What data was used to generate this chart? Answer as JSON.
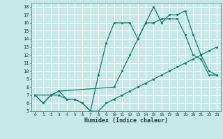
{
  "xlabel": "Humidex (Indice chaleur)",
  "bg_color": "#c8e8e8",
  "grid_color": "#ffffff",
  "line_color": "#1a7a6e",
  "xlim": [
    -0.5,
    23.5
  ],
  "ylim": [
    5,
    18.5
  ],
  "xticks": [
    0,
    1,
    2,
    3,
    4,
    5,
    6,
    7,
    8,
    9,
    10,
    11,
    12,
    13,
    14,
    15,
    16,
    17,
    18,
    19,
    20,
    21,
    22,
    23
  ],
  "yticks": [
    5,
    6,
    7,
    8,
    9,
    10,
    11,
    12,
    13,
    14,
    15,
    16,
    17,
    18
  ],
  "series": [
    {
      "x": [
        0,
        1,
        2,
        3,
        4,
        5,
        6,
        7,
        8,
        9,
        10,
        11,
        12,
        13,
        14,
        15,
        16,
        17,
        18,
        19,
        20,
        21,
        22,
        23
      ],
      "y": [
        7.0,
        6.0,
        7.0,
        7.0,
        6.5,
        6.5,
        6.0,
        5.0,
        5.0,
        6.0,
        6.5,
        7.0,
        7.5,
        8.0,
        8.5,
        9.0,
        9.5,
        10.0,
        10.5,
        11.0,
        11.5,
        12.0,
        12.5,
        13.0
      ]
    },
    {
      "x": [
        0,
        1,
        2,
        3,
        4,
        5,
        6,
        7,
        8,
        9,
        10,
        11,
        12,
        13,
        14,
        15,
        16,
        17,
        18,
        19,
        20,
        21,
        22,
        23
      ],
      "y": [
        7.0,
        6.0,
        7.0,
        7.5,
        6.5,
        6.5,
        6.0,
        5.0,
        9.5,
        13.5,
        16.0,
        16.0,
        16.0,
        14.0,
        16.0,
        16.0,
        16.5,
        16.5,
        16.5,
        14.5,
        12.0,
        11.5,
        9.5,
        9.5
      ]
    },
    {
      "x": [
        0,
        2,
        3,
        10,
        11,
        12,
        13,
        14,
        15,
        16,
        17,
        18,
        19,
        20,
        21,
        22,
        23
      ],
      "y": [
        7.0,
        7.0,
        7.5,
        8.0,
        10.0,
        12.0,
        14.0,
        16.0,
        18.0,
        16.0,
        17.0,
        17.0,
        17.5,
        14.5,
        12.0,
        10.0,
        9.5
      ]
    }
  ]
}
